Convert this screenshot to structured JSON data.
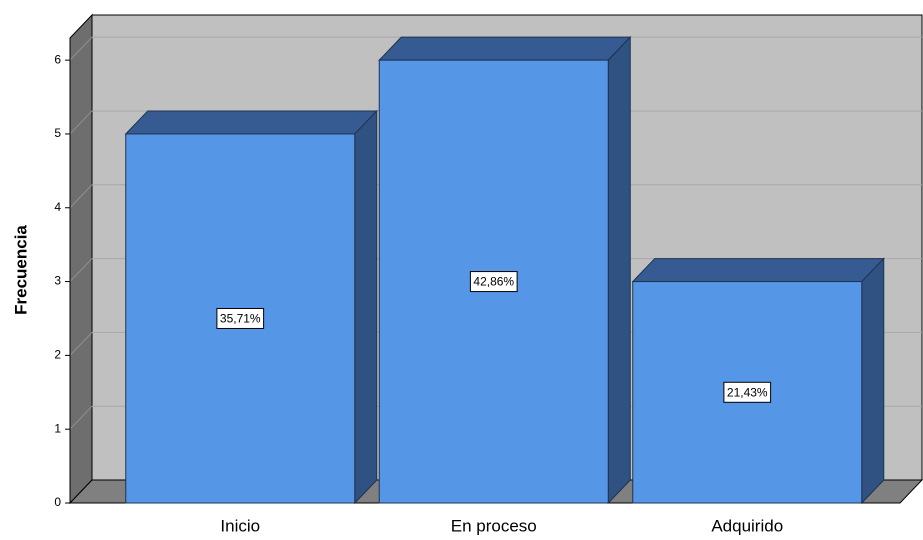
{
  "chart_data": {
    "type": "bar3d",
    "y_label": "Frecuencia",
    "categories": [
      "Inicio",
      "En proceso",
      "Adquirido"
    ],
    "values": [
      5,
      6,
      3
    ],
    "annotations": [
      "35,71%",
      "42,86%",
      "21,43%"
    ],
    "color": "#5596e6",
    "ylim": [
      0,
      6.3
    ],
    "yticks": [
      0,
      1,
      2,
      3,
      4,
      5,
      6
    ],
    "grid": true
  }
}
